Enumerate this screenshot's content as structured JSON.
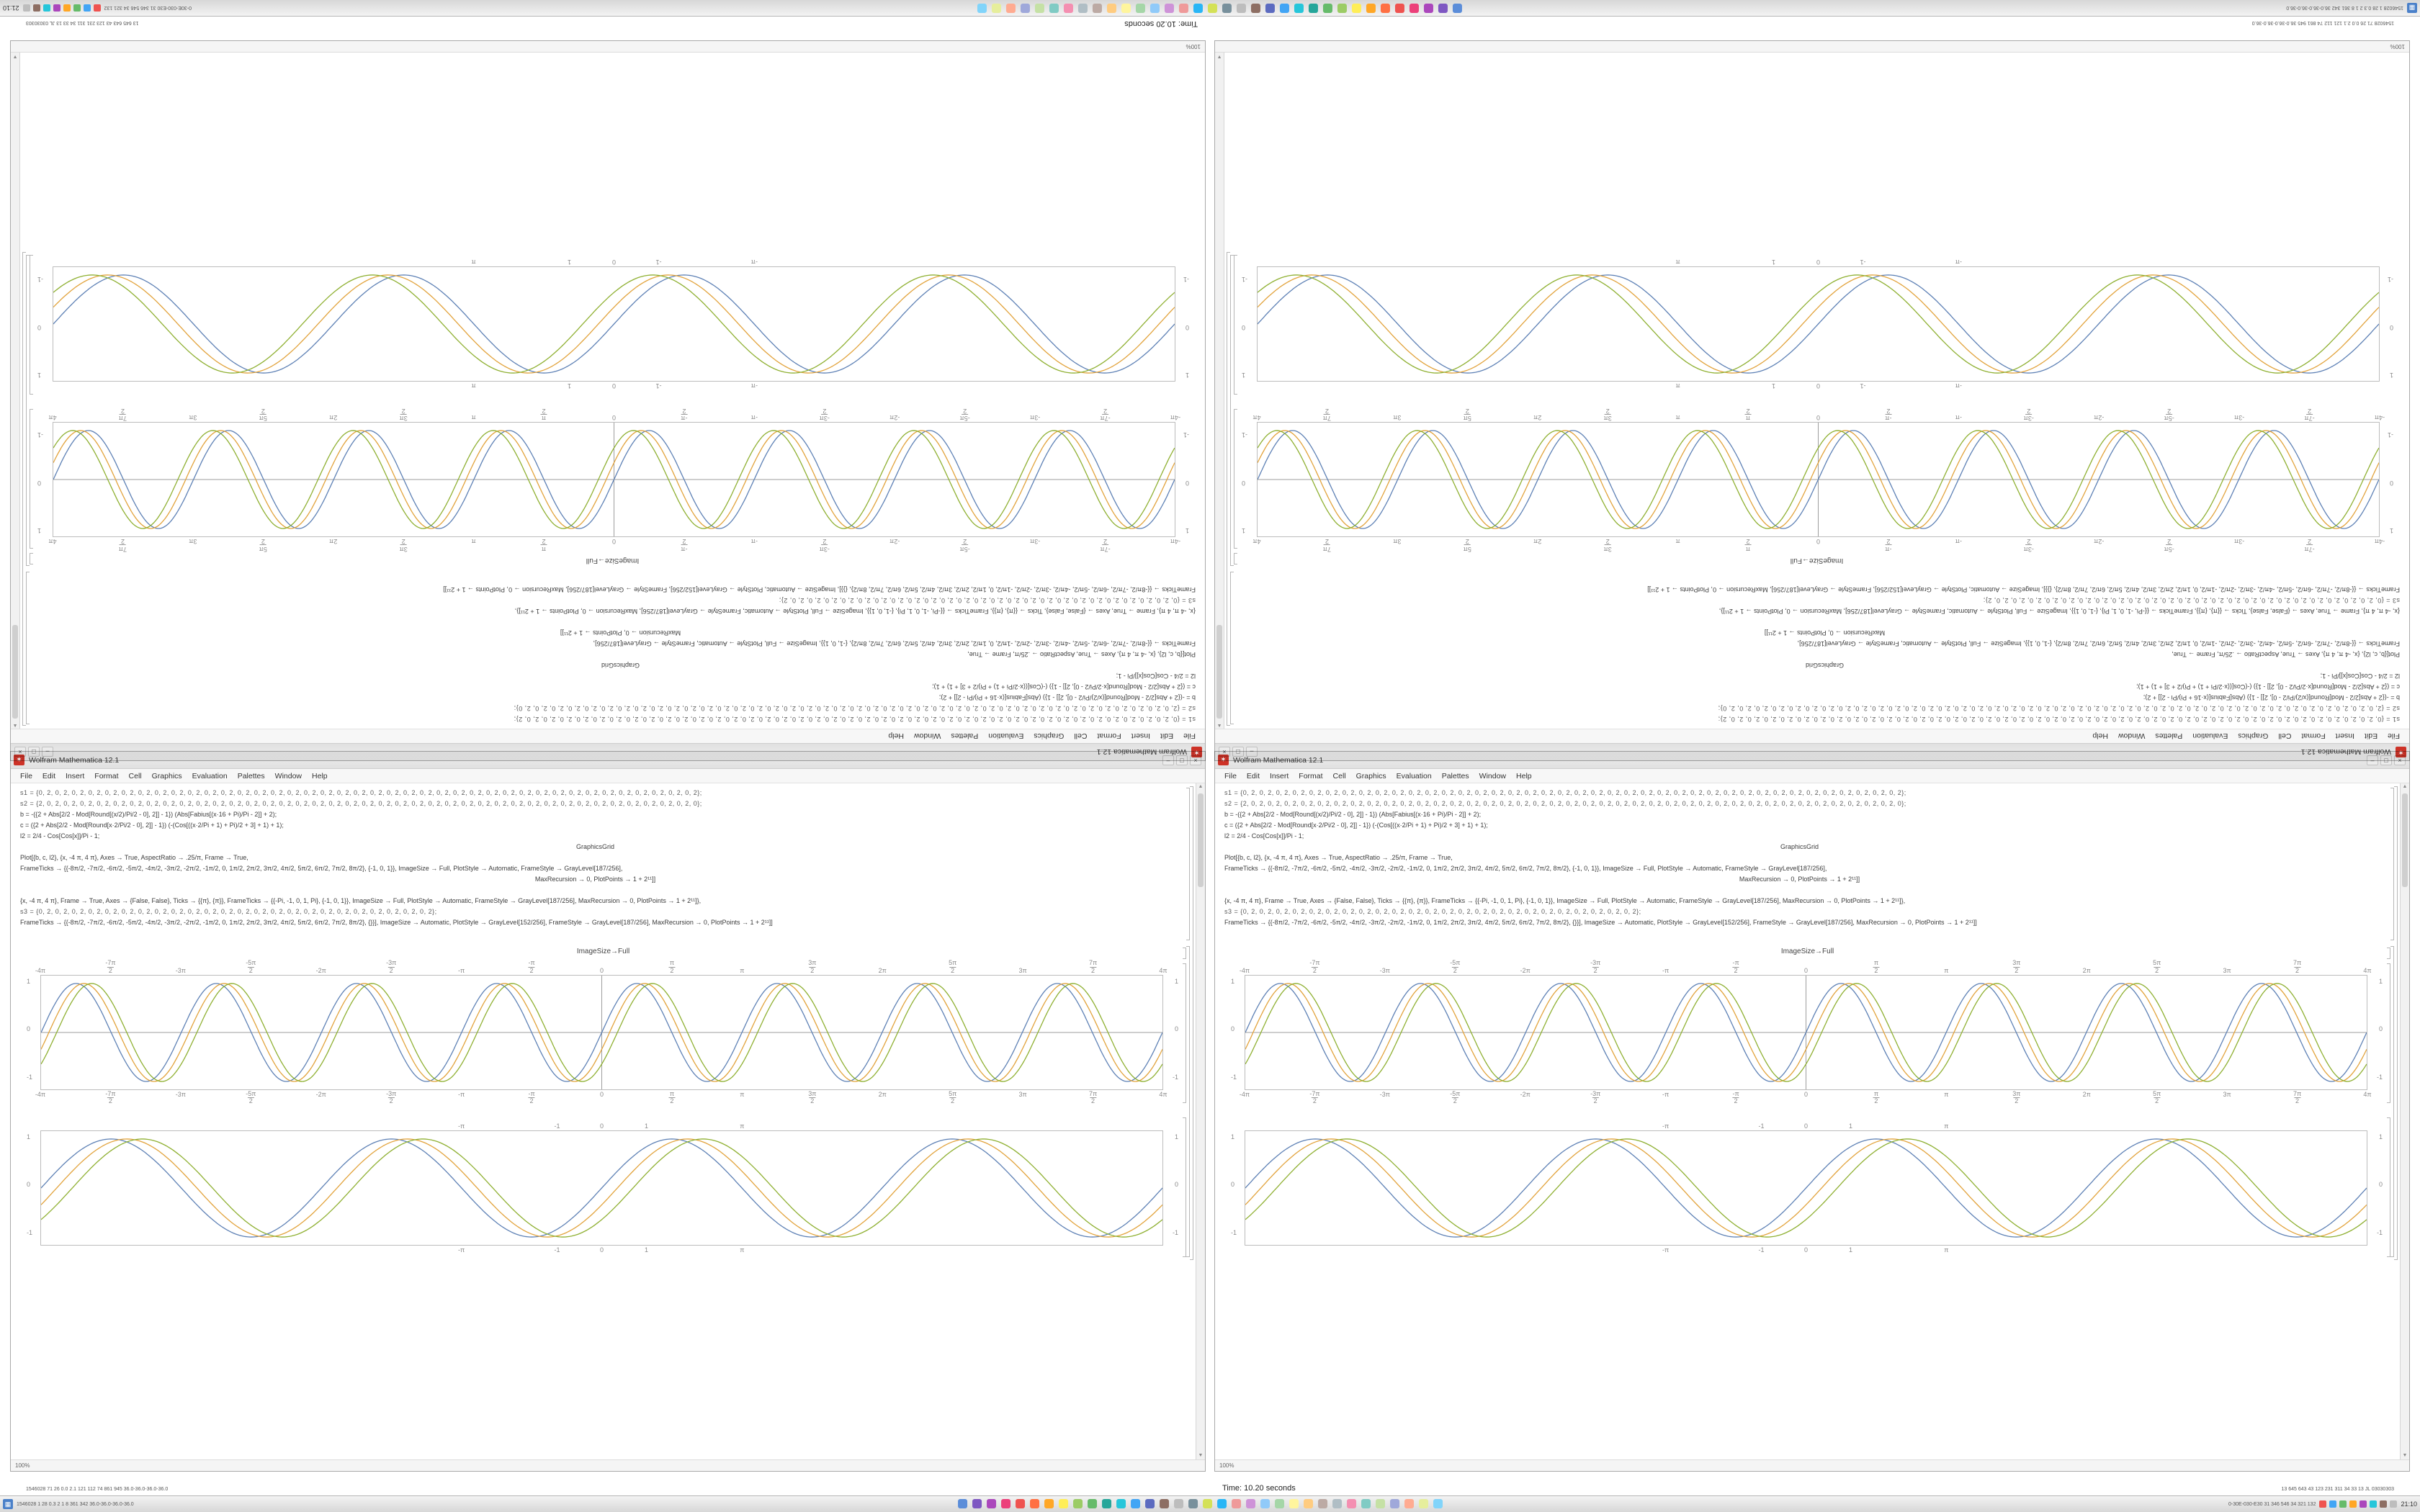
{
  "colors": {
    "accent_red": "#cd3227",
    "plot_frame_gray": "#bcbcbc",
    "plot_blue": "#5e81b5",
    "plot_gold": "#e2a33c",
    "plot_green": "#8fb032",
    "taskbar_bg": "#e3e3e3",
    "desktop_bg": "#ffffff"
  },
  "window": {
    "title": "Wolfram Mathematica 12.1",
    "spikey_glyph": "✶",
    "buttons": {
      "min": "–",
      "max": "□",
      "close": "×"
    },
    "menu": [
      "File",
      "Edit",
      "Insert",
      "Format",
      "Cell",
      "Graphics",
      "Evaluation",
      "Palettes",
      "Window",
      "Help"
    ],
    "code_lines": [
      {
        "t": "s1 = {0, 2, 0, 2, 0, 2, 0, 2, 0, 2, 0, 2, 0, 2, 0, 2, 0, 2, 0, 2, 0, 2, 0, 2, 0, 2, 0, 2, 0, 2, 0, 2, 0, 2, 0, 2, 0, 2, 0, 2, 0, 2, 0, 2, 0, 2, 0, 2, 0, 2, 0, 2, 0, 2, 0, 2, 0, 2, 0, 2, 0, 2, 0, 2, 0, 2, 0, 2, 0, 2, 0, 2, 0, 2, 0, 2, 0, 2, 0, 2};",
        "dots": true
      },
      {
        "t": "s2 = {2, 0, 2, 0, 2, 0, 2, 0, 2, 0, 2, 0, 2, 0, 2, 0, 2, 0, 2, 0, 2, 0, 2, 0, 2, 0, 2, 0, 2, 0, 2, 0, 2, 0, 2, 0, 2, 0, 2, 0, 2, 0, 2, 0, 2, 0, 2, 0, 2, 0, 2, 0, 2, 0, 2, 0, 2, 0, 2, 0, 2, 0, 2, 0, 2, 0, 2, 0, 2, 0, 2, 0, 2, 0, 2, 0, 2, 0, 2, 0};",
        "dots": true
      },
      {
        "t": "b = -({2 + Abs[2/2 - Mod[Round[(x/2)/Pi/2 - 0], 2]] - 1}) (Abs[Fabius[(x·16 + Pi)/Pi - 2]] + 2);"
      },
      {
        "t": "c = ({2 + Abs[2/2 - Mod[Round[x·2/Pi/2 - 0], 2]] - 1}) (-(Cos[((x·2/Pi + 1) + Pi)/2 + 3] + 1) + 1);"
      },
      {
        "t": "l2 = 2/4 - Cos[Cos[x]]/Pi - 1;"
      },
      {
        "t": "GraphicsGrid",
        "c": true
      },
      {
        "t": "Plot[{b, c, l2}, {x, -4 π, 4 π}, Axes → True, AspectRatio → .25/π, Frame → True,"
      },
      {
        "t": "FrameTicks → {{-8π/2, -7π/2, -6π/2, -5π/2, -4π/2, -3π/2, -2π/2, -1π/2, 0, 1π/2, 2π/2, 3π/2, 4π/2, 5π/2, 6π/2, 7π/2, 8π/2}, {-1, 0, 1}}, ImageSize → Full, PlotStyle → Automatic, FrameStyle → GrayLevel[187/256],"
      },
      {
        "t": "MaxRecursion → 0, PlotPoints → 1 + 2¹¹]]",
        "c": true
      },
      {
        "t": ""
      },
      {
        "t": "{x, -4 π, 4 π}, Frame → True, Axes → {False, False}, Ticks → {{π}, {π}}, FrameTicks → {{-Pi, -1, 0, 1, Pi}, {-1, 0, 1}}, ImageSize → Full, PlotStyle → Automatic, FrameStyle → GrayLevel[187/256], MaxRecursion → 0, PlotPoints → 1 + 2¹¹]},"
      },
      {
        "t": "s3 = {0, 2, 0, 2, 0, 2, 0, 2, 0, 2, 0, 2, 0, 2, 0, 2, 0, 2, 0, 2, 0, 2, 0, 2, 0, 2, 0, 2, 0, 2, 0, 2, 0, 2, 0, 2, 0, 2, 0, 2, 0, 2, 0, 2, 0, 2, 0, 2};",
        "dots": true
      },
      {
        "t": "FrameTicks → {{-8π/2, -7π/2, -6π/2, -5π/2, -4π/2, -3π/2, -2π/2, -1π/2, 0, 1π/2, 2π/2, 3π/2, 4π/2, 5π/2, 6π/2, 7π/2, 8π/2}, {}}], ImageSize → Automatic, PlotStyle → GrayLevel[152/256], FrameStyle → GrayLevel[187/256], MaxRecursion → 0, PlotPoints → 1 + 2¹¹]]"
      },
      {
        "t": ""
      }
    ],
    "caption": "ImageSize→Full",
    "status_zoom": "100%",
    "scrollbar": {
      "up": "▲",
      "down": "▼"
    }
  },
  "statusline": {
    "left": "1546028  71 26 0.0 2.1  121 112 74  861 945  36.0-36.0-36.0-36.0",
    "time": "Time: 10.20 seconds",
    "right": "13 645 643  43 123 231 311  34 33 13  JL  03030303"
  },
  "taskbar": {
    "start_glyph": "▦",
    "left_text": "1546028 1 28 0.3 2 1 8 361 342 36.0-36.0-36.0-36.0",
    "right_text": "0-30E-030-E30 31 346 546 34 321 132",
    "clock": "21:10",
    "app_icon_colors": [
      "#5b8dd9",
      "#7e57c2",
      "#ab47bc",
      "#ec407a",
      "#ef5350",
      "#ff7043",
      "#ffa726",
      "#ffee58",
      "#9ccc65",
      "#66bb6a",
      "#26a69a",
      "#26c6da",
      "#42a5f5",
      "#5c6bc0",
      "#8d6e63",
      "#bdbdbd",
      "#78909c",
      "#d4e157",
      "#29b6f6",
      "#ef9a9a",
      "#ce93d8",
      "#90caf9",
      "#a5d6a7",
      "#fff59d",
      "#ffcc80",
      "#bcaaa4",
      "#b0bec5",
      "#f48fb1",
      "#80cbc4",
      "#c5e1a5",
      "#9fa8da",
      "#ffab91",
      "#e6ee9c",
      "#81d4fa"
    ],
    "tray_icon_colors": [
      "#ef5350",
      "#42a5f5",
      "#66bb6a",
      "#ffa726",
      "#ab47bc",
      "#26c6da",
      "#8d6e63",
      "#bdbdbd"
    ]
  },
  "chart_data": [
    {
      "id": "framed-halfpi-ticks-plot",
      "type": "line",
      "title": "",
      "xlabel": "",
      "ylabel": "",
      "x_range_pi": [
        -4,
        4
      ],
      "ylim": [
        -1,
        1
      ],
      "freq": 2,
      "axes": true,
      "grid": false,
      "legend": "none",
      "x_ticks": [
        {
          "l": "-4π",
          "v": -4
        },
        {
          "l": "-7π/2",
          "v": -3.5
        },
        {
          "l": "-3π",
          "v": -3
        },
        {
          "l": "-5π/2",
          "v": -2.5
        },
        {
          "l": "-2π",
          "v": -2
        },
        {
          "l": "-3π/2",
          "v": -1.5
        },
        {
          "l": "-π",
          "v": -1
        },
        {
          "l": "-π/2",
          "v": -0.5
        },
        {
          "l": "0",
          "v": 0
        },
        {
          "l": "π/2",
          "v": 0.5
        },
        {
          "l": "π",
          "v": 1
        },
        {
          "l": "3π/2",
          "v": 1.5
        },
        {
          "l": "2π",
          "v": 2
        },
        {
          "l": "5π/2",
          "v": 2.5
        },
        {
          "l": "3π",
          "v": 3
        },
        {
          "l": "7π/2",
          "v": 3.5
        },
        {
          "l": "4π",
          "v": 4
        }
      ],
      "y_ticks": [
        {
          "l": "1",
          "v": 1
        },
        {
          "l": "0",
          "v": 0
        },
        {
          "l": "-1",
          "v": -1
        }
      ],
      "series": [
        {
          "name": "sin(2x)",
          "color": "#5e81b5",
          "phase": 0
        },
        {
          "name": "sin(2x−0.35)",
          "color": "#e2a33c",
          "phase": 0.35
        },
        {
          "name": "sin(2x−0.7)",
          "color": "#8fb032",
          "phase": 0.7
        }
      ]
    },
    {
      "id": "smooth-sine-plot",
      "type": "line",
      "title": "",
      "xlabel": "",
      "ylabel": "",
      "x_range_pi": [
        -4,
        4
      ],
      "ylim": [
        -1,
        1
      ],
      "freq": 1,
      "axes": false,
      "grid": false,
      "legend": "none",
      "x_ticks": [
        {
          "l": "-π",
          "v": -1
        },
        {
          "l": "-1",
          "v": -0.3183
        },
        {
          "l": "0",
          "v": 0
        },
        {
          "l": "1",
          "v": 0.3183
        },
        {
          "l": "π",
          "v": 1
        }
      ],
      "y_ticks": [
        {
          "l": "1",
          "v": 1
        },
        {
          "l": "0",
          "v": 0
        },
        {
          "l": "-1",
          "v": -1
        }
      ],
      "series": [
        {
          "name": "sin(x)",
          "color": "#5e81b5",
          "phase": 0
        },
        {
          "name": "sin(x−0.35)",
          "color": "#e2a33c",
          "phase": 0.35
        },
        {
          "name": "sin(x−0.7)",
          "color": "#8fb032",
          "phase": 0.7
        }
      ]
    }
  ]
}
